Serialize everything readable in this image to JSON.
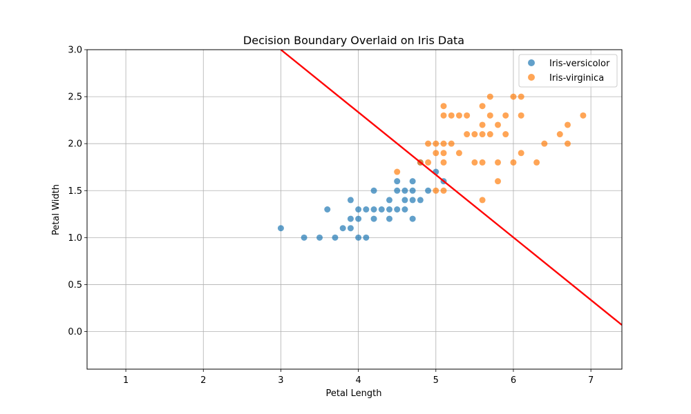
{
  "chart_data": {
    "type": "scatter",
    "title": "Decision Boundary Overlaid on Iris Data",
    "xlabel": "Petal Length",
    "ylabel": "Petal Width",
    "xlim": [
      0.5,
      7.4
    ],
    "ylim": [
      -0.4,
      3.0
    ],
    "xticks": [
      1,
      2,
      3,
      4,
      5,
      6,
      7
    ],
    "yticks": [
      0.0,
      0.5,
      1.0,
      1.5,
      2.0,
      2.5,
      3.0
    ],
    "xtick_labels": [
      "1",
      "2",
      "3",
      "4",
      "5",
      "6",
      "7"
    ],
    "ytick_labels": [
      "0.0",
      "0.5",
      "1.0",
      "1.5",
      "2.0",
      "2.5",
      "3.0"
    ],
    "grid": true,
    "legend_position": "top-right",
    "series": [
      {
        "name": "Iris-versicolor",
        "color": "#1f77b4",
        "points": [
          [
            3.0,
            1.1
          ],
          [
            3.3,
            1.0
          ],
          [
            3.5,
            1.0
          ],
          [
            3.6,
            1.3
          ],
          [
            3.7,
            1.0
          ],
          [
            3.8,
            1.1
          ],
          [
            3.9,
            1.1
          ],
          [
            3.9,
            1.2
          ],
          [
            3.9,
            1.4
          ],
          [
            4.0,
            1.0
          ],
          [
            4.0,
            1.2
          ],
          [
            4.0,
            1.3
          ],
          [
            4.1,
            1.0
          ],
          [
            4.1,
            1.3
          ],
          [
            4.2,
            1.2
          ],
          [
            4.2,
            1.3
          ],
          [
            4.2,
            1.5
          ],
          [
            4.3,
            1.3
          ],
          [
            4.4,
            1.2
          ],
          [
            4.4,
            1.3
          ],
          [
            4.4,
            1.4
          ],
          [
            4.5,
            1.3
          ],
          [
            4.5,
            1.5
          ],
          [
            4.5,
            1.6
          ],
          [
            4.6,
            1.3
          ],
          [
            4.6,
            1.4
          ],
          [
            4.6,
            1.5
          ],
          [
            4.7,
            1.2
          ],
          [
            4.7,
            1.4
          ],
          [
            4.7,
            1.5
          ],
          [
            4.7,
            1.6
          ],
          [
            4.8,
            1.4
          ],
          [
            4.8,
            1.8
          ],
          [
            4.9,
            1.5
          ],
          [
            5.0,
            1.7
          ],
          [
            5.1,
            1.6
          ]
        ]
      },
      {
        "name": "Iris-virginica",
        "color": "#ff7f0e",
        "points": [
          [
            4.5,
            1.7
          ],
          [
            4.8,
            1.8
          ],
          [
            4.9,
            1.8
          ],
          [
            4.9,
            2.0
          ],
          [
            5.0,
            1.5
          ],
          [
            5.0,
            1.9
          ],
          [
            5.0,
            2.0
          ],
          [
            5.1,
            1.5
          ],
          [
            5.1,
            1.8
          ],
          [
            5.1,
            1.9
          ],
          [
            5.1,
            2.0
          ],
          [
            5.1,
            2.3
          ],
          [
            5.1,
            2.4
          ],
          [
            5.2,
            2.0
          ],
          [
            5.2,
            2.3
          ],
          [
            5.3,
            1.9
          ],
          [
            5.3,
            2.3
          ],
          [
            5.4,
            2.1
          ],
          [
            5.4,
            2.3
          ],
          [
            5.5,
            1.8
          ],
          [
            5.5,
            2.1
          ],
          [
            5.6,
            1.4
          ],
          [
            5.6,
            1.8
          ],
          [
            5.6,
            2.1
          ],
          [
            5.6,
            2.2
          ],
          [
            5.6,
            2.4
          ],
          [
            5.7,
            2.1
          ],
          [
            5.7,
            2.3
          ],
          [
            5.7,
            2.5
          ],
          [
            5.8,
            1.6
          ],
          [
            5.8,
            1.8
          ],
          [
            5.8,
            2.2
          ],
          [
            5.9,
            2.1
          ],
          [
            5.9,
            2.3
          ],
          [
            6.0,
            1.8
          ],
          [
            6.0,
            2.5
          ],
          [
            6.1,
            1.9
          ],
          [
            6.1,
            2.3
          ],
          [
            6.1,
            2.5
          ],
          [
            6.3,
            1.8
          ],
          [
            6.4,
            2.0
          ],
          [
            6.6,
            2.1
          ],
          [
            6.7,
            2.0
          ],
          [
            6.7,
            2.2
          ],
          [
            6.9,
            2.3
          ]
        ]
      }
    ],
    "boundary_line": {
      "color": "#ff0000",
      "points": [
        [
          3.0,
          3.0
        ],
        [
          7.4,
          0.07
        ]
      ]
    }
  }
}
